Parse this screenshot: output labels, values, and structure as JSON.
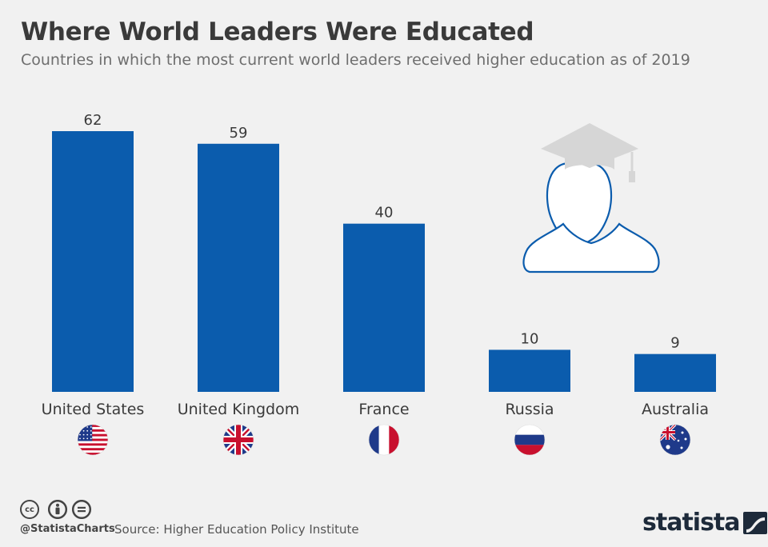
{
  "header": {
    "title": "Where World Leaders Were Educated",
    "subtitle": "Countries in which the most current world leaders received higher education as of 2019"
  },
  "chart_data": {
    "type": "bar",
    "categories": [
      "United States",
      "United Kingdom",
      "France",
      "Russia",
      "Australia"
    ],
    "values": [
      62,
      59,
      40,
      10,
      9
    ],
    "title": "Where World Leaders Were Educated",
    "subtitle": "Countries in which the most current world leaders received higher education as of 2019",
    "xlabel": "",
    "ylabel": "",
    "ylim": [
      0,
      62
    ],
    "grid": false,
    "bar_color": "#0b5cad"
  },
  "flags": [
    {
      "country": "United States",
      "icon": "us-flag-icon"
    },
    {
      "country": "United Kingdom",
      "icon": "uk-flag-icon"
    },
    {
      "country": "France",
      "icon": "france-flag-icon"
    },
    {
      "country": "Russia",
      "icon": "russia-flag-icon"
    },
    {
      "country": "Australia",
      "icon": "australia-flag-icon"
    }
  ],
  "illustration": {
    "icon": "graduate-icon"
  },
  "footer": {
    "license_icons": [
      "cc-icon",
      "by-icon",
      "nd-icon"
    ],
    "cc_label": "cc",
    "handle": "@StatistaCharts",
    "source": "Source: Higher Education Policy Institute",
    "brand": "statista"
  }
}
